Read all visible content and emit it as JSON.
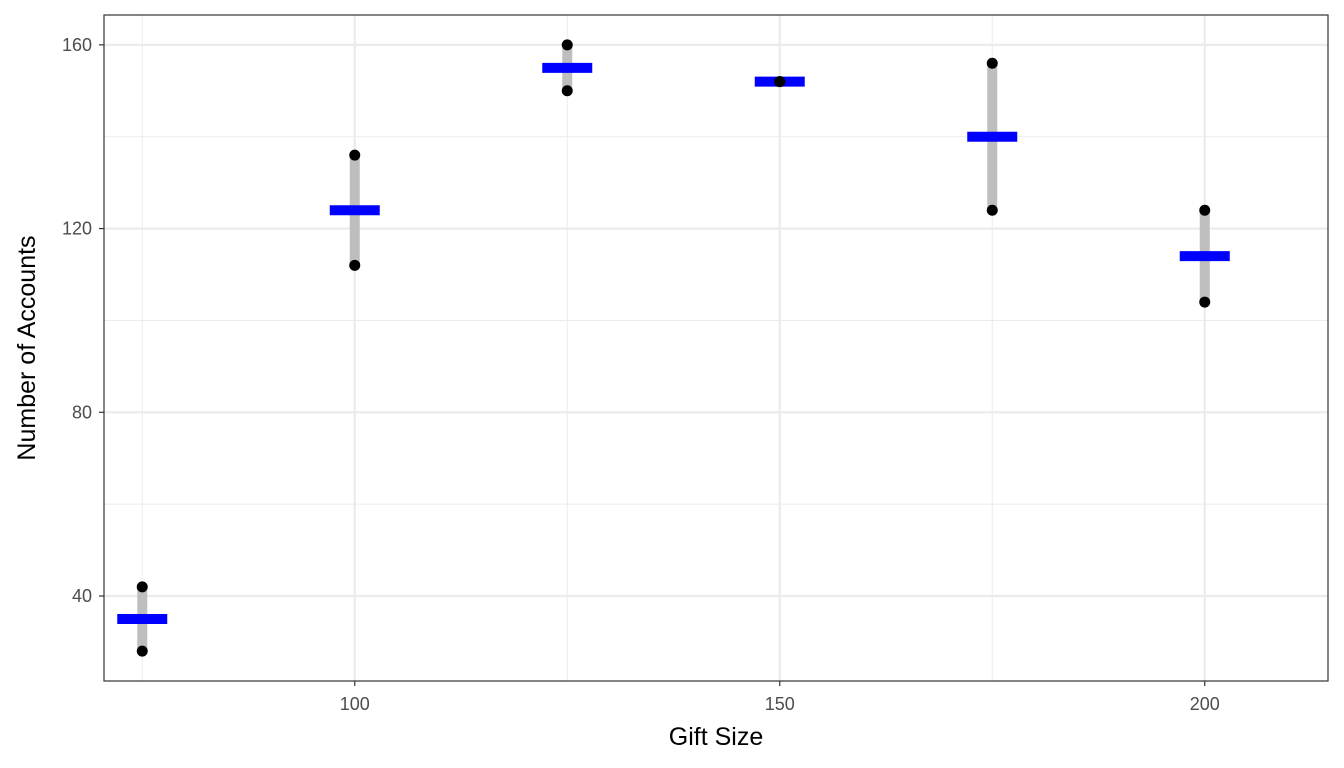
{
  "chart_data": {
    "type": "scatter",
    "xlabel": "Gift Size",
    "ylabel": "Number of Accounts",
    "xlim": [
      70.5,
      214.5
    ],
    "ylim": [
      21.5,
      166.5
    ],
    "x_ticks": [
      100,
      150,
      200
    ],
    "x_tick_labels": [
      "100",
      "150",
      "200"
    ],
    "y_ticks": [
      40,
      80,
      120,
      160
    ],
    "y_tick_labels": [
      "40",
      "80",
      "120",
      "160"
    ],
    "x_minor_ticks": [
      75,
      125,
      175
    ],
    "y_minor_ticks": [
      60,
      100,
      140
    ],
    "grid": true,
    "groups": [
      {
        "x": 75,
        "points": [
          28,
          42
        ],
        "mean": 35
      },
      {
        "x": 100,
        "points": [
          112,
          136
        ],
        "mean": 124
      },
      {
        "x": 125,
        "points": [
          150,
          160
        ],
        "mean": 155
      },
      {
        "x": 150,
        "points": [
          152,
          152
        ],
        "mean": 152
      },
      {
        "x": 175,
        "points": [
          124,
          156
        ],
        "mean": 140
      },
      {
        "x": 200,
        "points": [
          104,
          124
        ],
        "mean": 114
      }
    ],
    "colors": {
      "points": "#000000",
      "mean": "#0000ff",
      "range": "#bebebe",
      "grid": "#ebebeb",
      "panel_border": "#333333"
    }
  }
}
